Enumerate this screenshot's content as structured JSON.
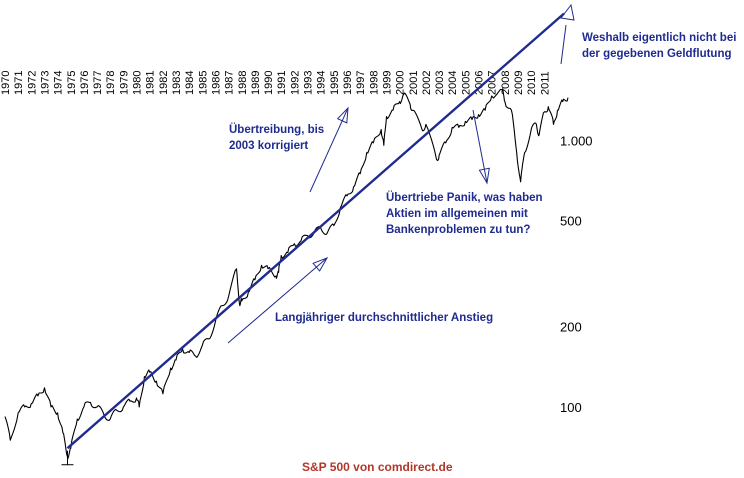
{
  "chart_data": {
    "type": "line",
    "series_name": "",
    "x_labels": [
      "1970",
      "1971",
      "1972",
      "1973",
      "1974",
      "1975",
      "1976",
      "1977",
      "1978",
      "1979",
      "1980",
      "1981",
      "1982",
      "1983",
      "1984",
      "1985",
      "1986",
      "1987",
      "1988",
      "1989",
      "1990",
      "1991",
      "1992",
      "1993",
      "1994",
      "1995",
      "1996",
      "1997",
      "1998",
      "1999",
      "2000",
      "2001",
      "2002",
      "2003",
      "2004",
      "2005",
      "2006",
      "2007",
      "2008",
      "2009",
      "2010",
      "2011"
    ],
    "y_scale": "log",
    "ylim": [
      60,
      3200
    ],
    "xlim": [
      1970.0,
      2012.8
    ],
    "y_ticks": [
      {
        "value": 100,
        "label": "100"
      },
      {
        "value": 200,
        "label": "200"
      },
      {
        "value": 500,
        "label": "500"
      },
      {
        "value": 1000,
        "label": "1.000"
      }
    ],
    "series": [
      {
        "x": [
          1970.0,
          1970.4,
          1971.0,
          1971.5,
          1972.0,
          1972.5,
          1973.0,
          1973.5,
          1974.0,
          1974.4,
          1974.75,
          1975.0,
          1975.5,
          1976.0,
          1976.5,
          1977.0,
          1977.5,
          1978.0,
          1978.5,
          1979.0,
          1979.5,
          1980.0,
          1980.2,
          1980.6,
          1981.0,
          1981.5,
          1982.0,
          1982.6,
          1983.0,
          1983.5,
          1984.0,
          1984.5,
          1985.0,
          1985.5,
          1986.0,
          1986.5,
          1987.0,
          1987.6,
          1987.85,
          1988.0,
          1988.5,
          1989.0,
          1989.5,
          1990.0,
          1990.6,
          1990.8,
          1991.0,
          1991.5,
          1992.0,
          1992.5,
          1993.0,
          1993.5,
          1994.0,
          1994.5,
          1995.0,
          1995.5,
          1996.0,
          1996.5,
          1997.0,
          1997.5,
          1998.0,
          1998.6,
          1998.8,
          1999.0,
          1999.5,
          2000.0,
          2000.3,
          2000.8,
          2001.0,
          2001.7,
          2002.0,
          2002.8,
          2003.0,
          2003.5,
          2004.0,
          2004.5,
          2005.0,
          2005.5,
          2006.0,
          2006.5,
          2007.0,
          2007.8,
          2008.0,
          2008.5,
          2008.9,
          2009.2,
          2009.5,
          2010.0,
          2010.4,
          2010.6,
          2011.0,
          2011.3,
          2011.7,
          2012.0,
          2012.4,
          2012.8
        ],
        "y": [
          92,
          75,
          95,
          100,
          103,
          110,
          118,
          100,
          95,
          80,
          65,
          70,
          90,
          100,
          104,
          100,
          94,
          90,
          97,
          100,
          105,
          108,
          100,
          130,
          135,
          125,
          112,
          140,
          150,
          165,
          160,
          155,
          170,
          180,
          210,
          240,
          260,
          330,
          240,
          250,
          270,
          300,
          340,
          330,
          310,
          320,
          370,
          380,
          410,
          420,
          440,
          450,
          470,
          450,
          480,
          560,
          620,
          670,
          750,
          900,
          980,
          1100,
          960,
          1230,
          1300,
          1400,
          1490,
          1370,
          1300,
          1100,
          1150,
          850,
          880,
          980,
          1120,
          1120,
          1180,
          1200,
          1250,
          1300,
          1470,
          1550,
          1400,
          1300,
          900,
          700,
          900,
          1100,
          1150,
          1050,
          1280,
          1340,
          1150,
          1300,
          1400,
          1450
        ]
      },
      {
        "name": "",
        "x": [
          1974.75,
          2012.5
        ],
        "y": [
          70,
          3000
        ]
      }
    ]
  },
  "annotations": {
    "uebertreibung": [
      "Übertreibung, bis",
      "2003 korrigiert"
    ],
    "panik": [
      "Übertriebe Panik, was haben",
      "Aktien im allgemeinen mit",
      "Bankenproblemen zu tun?"
    ],
    "weshalb": [
      "Weshalb eigentlich nicht bei",
      "der gegebenen Geldflutung"
    ],
    "anstieg": "Langjähriger durchschnittlicher Anstieg"
  },
  "source": "S&P 500 von comdirect.de",
  "colors": {
    "line": "#000000",
    "trend": "#1f2b8f",
    "annotation": "#1f2b8f",
    "source": "#b2372a"
  }
}
